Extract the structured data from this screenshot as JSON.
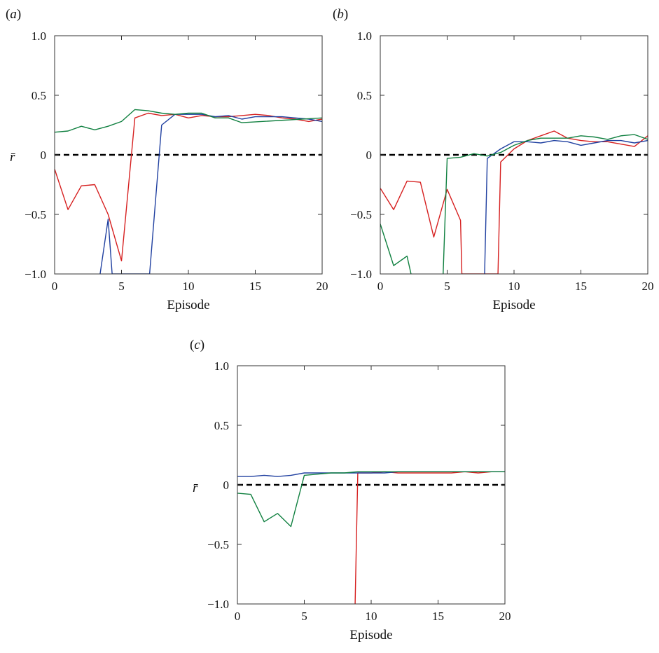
{
  "chart_data": [
    {
      "type": "line",
      "panel_label": "(a)",
      "xlabel": "Episode",
      "ylabel": "r̄",
      "xlim": [
        0,
        20
      ],
      "ylim": [
        -1.0,
        1.0
      ],
      "xticks": [
        "0",
        "5",
        "10",
        "15",
        "20"
      ],
      "yticks": [
        "1.0",
        "0.5",
        "0",
        "−0.5",
        "−1.0"
      ],
      "reference_line": {
        "y": 0,
        "style": "dashed",
        "color": "#000000"
      },
      "grid": false,
      "series": [
        {
          "color": "#d62020",
          "x": [
            0,
            1,
            2,
            3,
            4,
            5,
            6,
            7,
            8,
            9,
            10,
            11,
            12,
            13,
            14,
            15,
            16,
            17,
            18,
            19,
            20
          ],
          "y": [
            -0.12,
            -0.46,
            -0.26,
            -0.25,
            -0.5,
            -0.89,
            0.31,
            0.35,
            0.33,
            0.34,
            0.31,
            0.33,
            0.32,
            0.32,
            0.33,
            0.34,
            0.33,
            0.31,
            0.3,
            0.28,
            0.3
          ]
        },
        {
          "color": "#2040a0",
          "x": [
            3.4,
            4,
            4.3,
            4.3,
            7.1,
            7.1,
            8,
            9,
            10,
            11,
            12,
            13,
            14,
            15,
            16,
            17,
            18,
            19,
            20
          ],
          "y": [
            -1.0,
            -0.54,
            -1.0,
            -1.0,
            -1.0,
            -1.0,
            0.25,
            0.34,
            0.34,
            0.34,
            0.32,
            0.33,
            0.3,
            0.32,
            0.32,
            0.32,
            0.31,
            0.3,
            0.28
          ],
          "gaps_after_index": [
            2,
            4
          ]
        },
        {
          "color": "#108040",
          "x": [
            0,
            1,
            2,
            3,
            4,
            5,
            6,
            7,
            8,
            9,
            10,
            11,
            12,
            13,
            14,
            20
          ],
          "y": [
            0.19,
            0.2,
            0.24,
            0.21,
            0.24,
            0.28,
            0.38,
            0.37,
            0.35,
            0.34,
            0.35,
            0.35,
            0.31,
            0.31,
            0.27,
            0.31
          ]
        }
      ]
    },
    {
      "type": "line",
      "panel_label": "(b)",
      "xlabel": "Episode",
      "ylabel": "",
      "xlim": [
        0,
        20
      ],
      "ylim": [
        -1.0,
        1.0
      ],
      "xticks": [
        "0",
        "5",
        "10",
        "15",
        "20"
      ],
      "yticks": [
        "1.0",
        "0.5",
        "0",
        "−0.5",
        "−1.0"
      ],
      "reference_line": {
        "y": 0,
        "style": "dashed",
        "color": "#000000"
      },
      "grid": false,
      "series": [
        {
          "color": "#d62020",
          "x": [
            0,
            1,
            2,
            3,
            4,
            5,
            6,
            6.1,
            6.1,
            8.8,
            8.8,
            9,
            10,
            11,
            12,
            13,
            14,
            15,
            16,
            17,
            18,
            19,
            20
          ],
          "y": [
            -0.28,
            -0.46,
            -0.22,
            -0.23,
            -0.69,
            -0.29,
            -0.55,
            -1.0,
            -1.0,
            -1.0,
            -1.0,
            -0.06,
            0.05,
            0.12,
            0.16,
            0.2,
            0.14,
            0.12,
            0.11,
            0.11,
            0.09,
            0.07,
            0.16
          ],
          "gaps_after_index": [
            7
          ]
        },
        {
          "color": "#2040a0",
          "x": [
            7.8,
            7.8,
            8,
            9,
            10,
            11,
            12,
            13,
            14,
            15,
            16,
            17,
            18,
            19,
            20
          ],
          "y": [
            -1.0,
            -1.0,
            -0.03,
            0.05,
            0.11,
            0.11,
            0.1,
            0.12,
            0.11,
            0.08,
            0.1,
            0.12,
            0.12,
            0.1,
            0.12
          ]
        },
        {
          "color": "#108040",
          "x": [
            0,
            1,
            2,
            2.3,
            2.3,
            4.7,
            4.7,
            5,
            6,
            7,
            8,
            9,
            10,
            11,
            12,
            13,
            14,
            15,
            16,
            17,
            18,
            19,
            20
          ],
          "y": [
            -0.58,
            -0.93,
            -0.85,
            -1.0,
            -1.0,
            -1.0,
            -1.0,
            -0.03,
            -0.02,
            0.01,
            -0.01,
            0.02,
            0.08,
            0.12,
            0.14,
            0.14,
            0.14,
            0.16,
            0.15,
            0.13,
            0.16,
            0.17,
            0.13
          ],
          "gaps_after_index": [
            4
          ]
        }
      ]
    },
    {
      "type": "line",
      "panel_label": "(c)",
      "xlabel": "Episode",
      "ylabel": "r̄",
      "xlim": [
        0,
        20
      ],
      "ylim": [
        -1.0,
        1.0
      ],
      "xticks": [
        "0",
        "5",
        "10",
        "15",
        "20"
      ],
      "yticks": [
        "1.0",
        "0.5",
        "0",
        "−0.5",
        "−1.0"
      ],
      "reference_line": {
        "y": 0,
        "style": "dashed",
        "color": "#000000"
      },
      "grid": false,
      "series": [
        {
          "color": "#d62020",
          "x": [
            8.8,
            9,
            10,
            11,
            12,
            13,
            14,
            15,
            16,
            17,
            18,
            19,
            20
          ],
          "y": [
            -1.0,
            0.1,
            0.1,
            0.11,
            0.1,
            0.1,
            0.1,
            0.1,
            0.1,
            0.11,
            0.1,
            0.11,
            0.11
          ]
        },
        {
          "color": "#2040a0",
          "x": [
            0,
            1,
            2,
            3,
            4,
            5,
            6,
            7,
            8,
            9,
            10,
            11,
            12,
            13,
            14,
            15,
            16,
            17,
            18,
            19,
            20
          ],
          "y": [
            0.07,
            0.07,
            0.08,
            0.07,
            0.08,
            0.1,
            0.1,
            0.1,
            0.1,
            0.1,
            0.1,
            0.1,
            0.11,
            0.11,
            0.11,
            0.11,
            0.11,
            0.11,
            0.11,
            0.11,
            0.11
          ]
        },
        {
          "color": "#108040",
          "x": [
            0,
            1,
            2,
            3,
            4,
            5,
            6,
            7,
            8,
            9,
            10,
            11,
            12,
            13,
            14,
            15,
            16,
            17,
            18,
            19,
            20
          ],
          "y": [
            -0.07,
            -0.08,
            -0.31,
            -0.24,
            -0.35,
            0.08,
            0.09,
            0.1,
            0.1,
            0.11,
            0.11,
            0.11,
            0.11,
            0.11,
            0.11,
            0.11,
            0.11,
            0.11,
            0.11,
            0.11,
            0.11
          ]
        }
      ]
    }
  ]
}
